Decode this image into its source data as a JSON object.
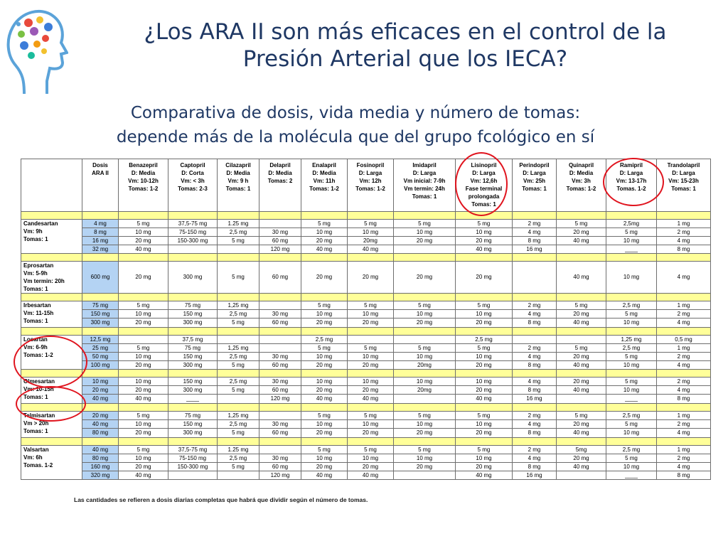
{
  "header": {
    "title_line1": "¿Los ARA II son más eficaces en el control de la",
    "title_line2": "Presión Arterial que los IECA?",
    "subtitle_line1": "Comparativa de dosis, vida media y número de tomas:",
    "subtitle_line2": "depende más de la molécula que del grupo fcológico en sí"
  },
  "table": {
    "columns": [
      [
        "Dosis",
        "ARA II"
      ],
      [
        "Benazepril",
        "D: Media",
        "Vm: 10-12h",
        "Tomas: 1-2"
      ],
      [
        "Captopril",
        "D: Corta",
        "Vm: < 3h",
        "Tomas: 2-3"
      ],
      [
        "Cilazapril",
        "D: Media",
        "Vm: 9 h",
        "Tomas: 1"
      ],
      [
        "Delapril",
        "D: Media",
        "Tomas: 2"
      ],
      [
        "Enalapril",
        "D: Media",
        "Vm: 11h",
        "Tomas: 1-2"
      ],
      [
        "Fosinopril",
        "D: Larga",
        "Vm: 12h",
        "Tomas: 1-2"
      ],
      [
        "Imidapril",
        "D: Larga",
        "Vm inicial: 7-9h",
        "Vm termin: 24h",
        "Tomas: 1"
      ],
      [
        "Lisinopril",
        "D: Larga",
        "Vm: 12,6h",
        "Fase terminal",
        "prolongada",
        "Tomas: 1"
      ],
      [
        "Perindopril",
        "D: Larga",
        "Vm: 25h",
        "Tomas: 1"
      ],
      [
        "Quinapril",
        "D: Media",
        "Vm: 3h",
        "Tomas: 1-2"
      ],
      [
        "Ramipril",
        "D: Larga",
        "Vm: 13-17h",
        "Tomas. 1-2"
      ],
      [
        "Trandolapril",
        "D: Larga",
        "Vm: 15-23h",
        "Tomas: 1"
      ]
    ],
    "groups": [
      {
        "label": [
          "Candesartan",
          "Vm: 9h",
          "Tomas: 1"
        ],
        "rows": [
          [
            "4 mg",
            "5 mg",
            "37,5-75 mg",
            "1.25 mg",
            "",
            "5 mg",
            "5 mg",
            "5 mg",
            "5 mg",
            "2 mg",
            "5 mg",
            "2,5mg",
            "1 mg"
          ],
          [
            "8 mg",
            "10 mg",
            "75-150 mg",
            "2,5 mg",
            "30 mg",
            "10 mg",
            "10 mg",
            "10 mg",
            "10 mg",
            "4 mg",
            "20 mg",
            "5 mg",
            "2 mg"
          ],
          [
            "16 mg",
            "20 mg",
            "150-300 mg",
            "5 mg",
            "60 mg",
            "20 mg",
            "20mg",
            "20 mg",
            "20 mg",
            "8 mg",
            "40 mg",
            "10 mg",
            "4 mg"
          ],
          [
            "32 mg",
            "40 mg",
            "",
            "",
            "120 mg",
            "40 mg",
            "40 mg",
            "",
            "40 mg",
            "16 mg",
            "",
            "____",
            "8 mg"
          ]
        ]
      },
      {
        "label": [
          "Eprosartan",
          "Vm: 5-9h",
          "Vm termin: 20h",
          "Tomas: 1"
        ],
        "rows": [
          [
            "600 mg",
            "20 mg",
            "300 mg",
            "5 mg",
            "60 mg",
            "20 mg",
            "20 mg",
            "20 mg",
            "20 mg",
            "",
            "40 mg",
            "10 mg",
            "4 mg"
          ]
        ]
      },
      {
        "label": [
          "Irbesartan",
          "Vm: 11-15h",
          "Tomas: 1"
        ],
        "rows": [
          [
            "75 mg",
            "5 mg",
            "75 mg",
            "1,25 mg",
            "",
            "5 mg",
            "5 mg",
            "5 mg",
            "5 mg",
            "2 mg",
            "5 mg",
            "2,5 mg",
            "1 mg"
          ],
          [
            "150 mg",
            "10 mg",
            "150 mg",
            "2,5 mg",
            "30 mg",
            "10 mg",
            "10 mg",
            "10 mg",
            "10 mg",
            "4 mg",
            "20 mg",
            "5 mg",
            "2 mg"
          ],
          [
            "300 mg",
            "20 mg",
            "300 mg",
            "5 mg",
            "60 mg",
            "20 mg",
            "20 mg",
            "20 mg",
            "20 mg",
            "8 mg",
            "40 mg",
            "10 mg",
            "4 mg"
          ]
        ]
      },
      {
        "label": [
          "Losartan",
          "Vm: 6-9h",
          "Tomas: 1-2"
        ],
        "rows": [
          [
            "12,5 mg",
            "",
            "37,5 mg",
            "",
            "",
            "2,5 mg",
            "",
            "",
            "2,5 mg",
            "",
            "",
            "1,25 mg",
            "0,5 mg"
          ],
          [
            "25 mg",
            "5 mg",
            "75 mg",
            "1,25 mg",
            "",
            "5 mg",
            "5 mg",
            "5 mg",
            "5 mg",
            "2 mg",
            "5 mg",
            "2,5 mg",
            "1 mg"
          ],
          [
            "50 mg",
            "10 mg",
            "150 mg",
            "2,5 mg",
            "30 mg",
            "10 mg",
            "10 mg",
            "10 mg",
            "10 mg",
            "4 mg",
            "20 mg",
            "5 mg",
            "2 mg"
          ],
          [
            "100 mg",
            "20 mg",
            "300 mg",
            "5 mg",
            "60 mg",
            "20 mg",
            "20 mg",
            "20mg",
            "20 mg",
            "8 mg",
            "40 mg",
            "10 mg",
            "4 mg"
          ]
        ]
      },
      {
        "label": [
          "Olmesartan",
          "Vm: 10-15h",
          "Tomas: 1"
        ],
        "rows": [
          [
            "10 mg",
            "10 mg",
            "150 mg",
            "2,5 mg",
            "30 mg",
            "10 mg",
            "10 mg",
            "10 mg",
            "10 mg",
            "4 mg",
            "20 mg",
            "5 mg",
            "2 mg"
          ],
          [
            "20 mg",
            "20 mg",
            "300 mg",
            "5 mg",
            "60 mg",
            "20 mg",
            "20 mg",
            "20mg",
            "20 mg",
            "8 mg",
            "40 mg",
            "10 mg",
            "4 mg"
          ],
          [
            "40 mg",
            "40 mg",
            "____",
            "",
            "120 mg",
            "40 mg",
            "40 mg",
            "",
            "40 mg",
            "16 mg",
            "",
            "____",
            "8 mg"
          ]
        ]
      },
      {
        "label": [
          "Telmisartan",
          "Vm > 20h",
          "Tomas: 1"
        ],
        "rows": [
          [
            "20 mg",
            "5 mg",
            "75 mg",
            "1,25 mg",
            "",
            "5 mg",
            "5 mg",
            "5 mg",
            "5 mg",
            "2 mg",
            "5 mg",
            "2,5 mg",
            "1 mg"
          ],
          [
            "40 mg",
            "10 mg",
            "150 mg",
            "2,5 mg",
            "30 mg",
            "10 mg",
            "10 mg",
            "10 mg",
            "10 mg",
            "4 mg",
            "20 mg",
            "5 mg",
            "2 mg"
          ],
          [
            "80 mg",
            "20 mg",
            "300 mg",
            "5 mg",
            "60 mg",
            "20 mg",
            "20 mg",
            "20 mg",
            "20 mg",
            "8 mg",
            "40 mg",
            "10 mg",
            "4 mg"
          ]
        ]
      },
      {
        "label": [
          "Valsartan",
          "Vm: 6h",
          "Tomas. 1-2"
        ],
        "rows": [
          [
            "40 mg",
            "5 mg",
            "37,5-75 mg",
            "1.25 mg",
            "",
            "5 mg",
            "5 mg",
            "5 mg",
            "5 mg",
            "2 mg",
            "5mg",
            "2,5 mg",
            "1 mg"
          ],
          [
            "80 mg",
            "10 mg",
            "75-150 mg",
            "2,5 mg",
            "30 mg",
            "10 mg",
            "10 mg",
            "10 mg",
            "10 mg",
            "4 mg",
            "20 mg",
            "5 mg",
            "2 mg"
          ],
          [
            "160 mg",
            "20 mg",
            "150-300 mg",
            "5 mg",
            "60 mg",
            "20 mg",
            "20 mg",
            "20 mg",
            "20 mg",
            "8 mg",
            "40 mg",
            "10 mg",
            "4 mg"
          ],
          [
            "320 mg",
            "40 mg",
            "",
            "",
            "120 mg",
            "40 mg",
            "40 mg",
            "",
            "40 mg",
            "16 mg",
            "",
            "____",
            "8 mg"
          ]
        ]
      }
    ],
    "footnote": "Las cantidades se refieren a dosis diarias completas que habrá que dividir según el número de tomas."
  },
  "colors": {
    "title": "#1f3864",
    "separator_row": "#ffff99",
    "ara_dose_cell": "#b4d3f3",
    "highlight_circle": "#e0141e"
  },
  "icons": {
    "logo": "head-profile-pills-logo"
  }
}
